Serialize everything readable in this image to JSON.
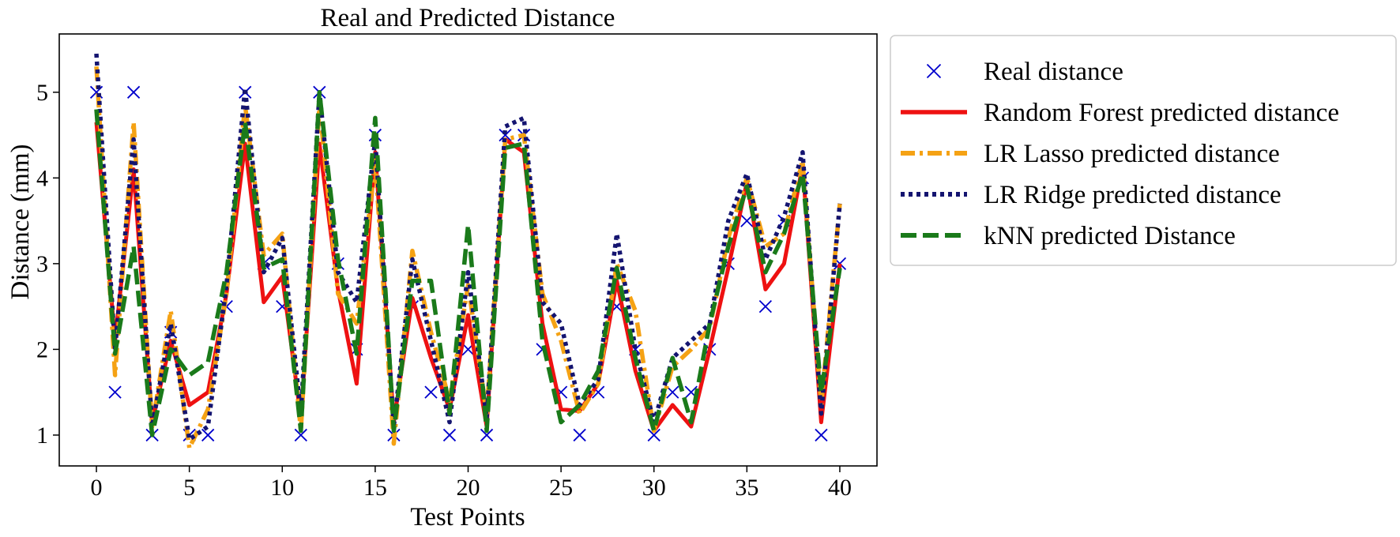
{
  "chart_data": {
    "type": "line",
    "title": "Real and Predicted Distance",
    "xlabel": "Test Points",
    "ylabel": "Distance (mm)",
    "xlim": [
      -2,
      42
    ],
    "ylim": [
      0.64,
      5.68
    ],
    "xticks": [
      0,
      5,
      10,
      15,
      20,
      25,
      30,
      35,
      40
    ],
    "yticks": [
      1,
      2,
      3,
      4,
      5
    ],
    "grid": false,
    "legend_position": "outside-right",
    "x": [
      0,
      1,
      2,
      3,
      4,
      5,
      6,
      7,
      8,
      9,
      10,
      11,
      12,
      13,
      14,
      15,
      16,
      17,
      18,
      19,
      20,
      21,
      22,
      23,
      24,
      25,
      26,
      27,
      28,
      29,
      30,
      31,
      32,
      33,
      34,
      35,
      36,
      37,
      38,
      39,
      40
    ],
    "series": [
      {
        "name": "Real distance",
        "kind": "scatter",
        "marker": "x",
        "color": "#0000cc",
        "values": [
          5,
          1.5,
          5,
          1,
          2.2,
          1,
          1,
          2.5,
          5,
          3,
          2.5,
          1,
          5,
          3,
          2,
          4.5,
          1,
          2.5,
          1.5,
          1,
          2,
          1,
          4.5,
          4.5,
          2,
          1.5,
          1,
          1.5,
          2.5,
          2,
          1,
          1.5,
          1.5,
          2,
          3,
          3.5,
          2.5,
          3.5,
          4,
          1,
          3
        ]
      },
      {
        "name": "Random Forest predicted distance",
        "kind": "line",
        "dash": "solid",
        "color": "#ee1111",
        "values": [
          4.65,
          2.1,
          4.1,
          1.15,
          2.1,
          1.35,
          1.5,
          2.65,
          4.4,
          2.55,
          2.85,
          1.2,
          4.4,
          2.7,
          1.6,
          4.3,
          1.15,
          2.6,
          1.9,
          1.3,
          2.4,
          1.1,
          4.45,
          4.3,
          2.3,
          1.3,
          1.28,
          1.6,
          2.8,
          1.75,
          1.05,
          1.35,
          1.1,
          2.0,
          2.95,
          3.95,
          2.7,
          3.0,
          4.15,
          1.15,
          3.0
        ]
      },
      {
        "name": "LR Lasso predicted distance",
        "kind": "line",
        "dash": "dashdot",
        "color": "#f5a214",
        "values": [
          5.3,
          1.7,
          4.65,
          1.1,
          2.45,
          0.85,
          1.3,
          2.65,
          4.85,
          3.1,
          3.35,
          1.05,
          4.85,
          2.65,
          2.3,
          4.2,
          0.9,
          3.15,
          2.2,
          1.4,
          2.75,
          1.25,
          4.45,
          4.5,
          2.65,
          2.1,
          1.25,
          1.6,
          3.0,
          2.45,
          1.05,
          1.8,
          2.0,
          2.25,
          3.3,
          4.0,
          3.2,
          3.35,
          4.2,
          1.35,
          3.7
        ]
      },
      {
        "name": "LR Ridge predicted distance",
        "kind": "line",
        "dash": "dotted",
        "color": "#141470",
        "values": [
          5.45,
          2.0,
          4.45,
          1.1,
          2.3,
          0.95,
          1.1,
          2.75,
          5.05,
          2.9,
          3.3,
          1.25,
          5.0,
          2.9,
          2.55,
          4.45,
          1.1,
          3.05,
          2.1,
          1.15,
          2.9,
          1.2,
          4.6,
          4.7,
          2.55,
          2.3,
          1.35,
          1.65,
          3.35,
          2.0,
          1.15,
          1.9,
          2.1,
          2.3,
          3.5,
          4.05,
          3.05,
          3.55,
          4.3,
          1.25,
          3.7
        ]
      },
      {
        "name": "kNN predicted Distance",
        "kind": "line",
        "dash": "dashed",
        "color": "#1a7a1a",
        "values": [
          4.8,
          1.95,
          3.2,
          1.0,
          2.0,
          1.7,
          1.85,
          2.9,
          4.65,
          2.95,
          3.05,
          1.05,
          5.0,
          3.05,
          1.95,
          4.7,
          1.05,
          2.8,
          2.8,
          1.25,
          3.45,
          1.05,
          4.35,
          4.4,
          2.1,
          1.15,
          1.35,
          1.75,
          2.95,
          1.9,
          1.05,
          1.9,
          1.15,
          2.3,
          3.2,
          3.9,
          2.9,
          3.35,
          4.05,
          1.5,
          2.95
        ]
      }
    ]
  }
}
